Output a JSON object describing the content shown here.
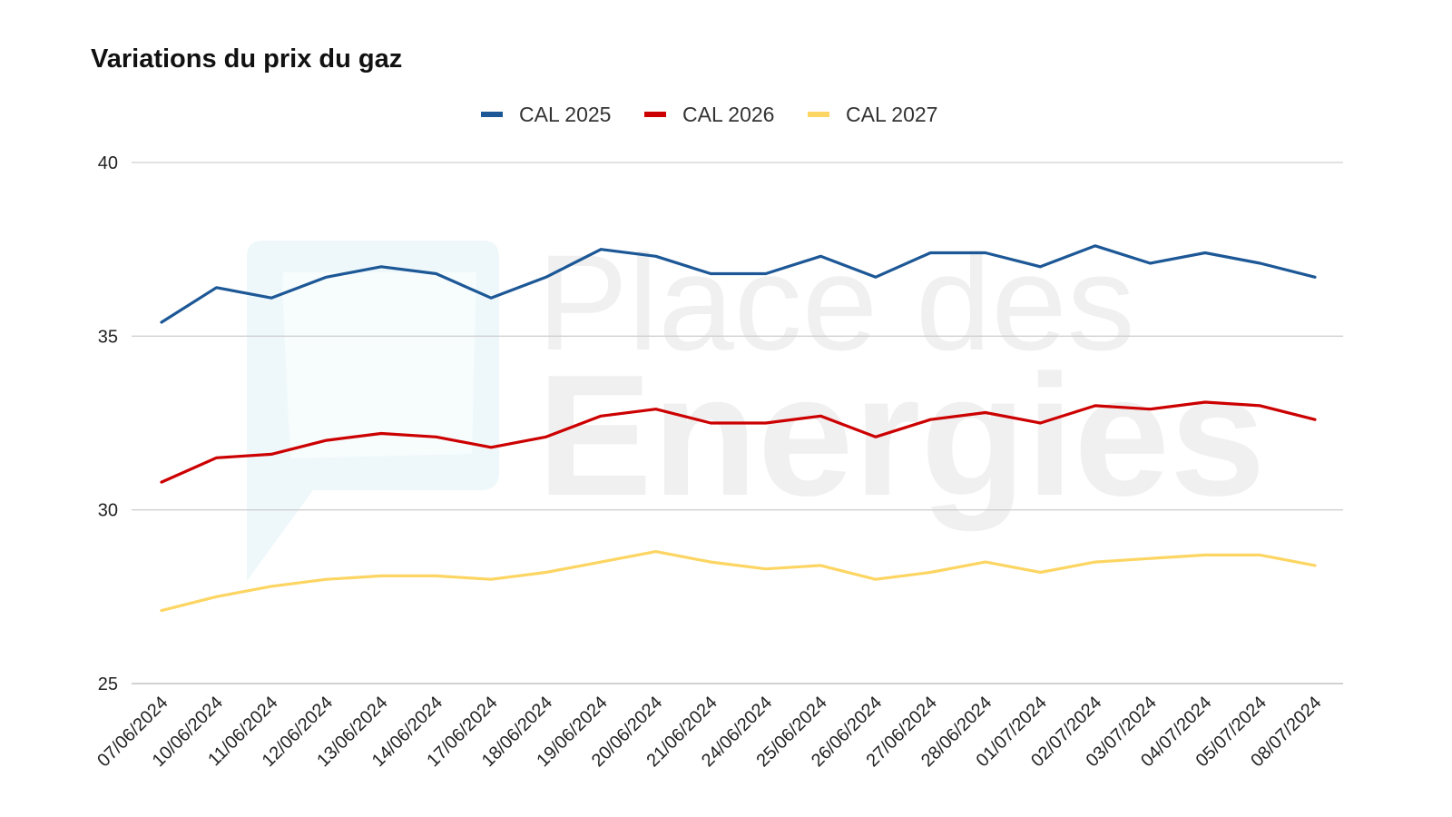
{
  "watermark": {
    "line1": "Place des",
    "line2": "Energies"
  },
  "chart_data": {
    "type": "line",
    "title": "Variations du prix du gaz",
    "xlabel": "",
    "ylabel": "",
    "ylim": [
      25,
      40
    ],
    "yticks": [
      25,
      30,
      35,
      40
    ],
    "grid": true,
    "legend_position": "top-center",
    "categories": [
      "07/06/2024",
      "10/06/2024",
      "11/06/2024",
      "12/06/2024",
      "13/06/2024",
      "14/06/2024",
      "17/06/2024",
      "18/06/2024",
      "19/06/2024",
      "20/06/2024",
      "21/06/2024",
      "24/06/2024",
      "25/06/2024",
      "26/06/2024",
      "27/06/2024",
      "28/06/2024",
      "01/07/2024",
      "02/07/2024",
      "03/07/2024",
      "04/07/2024",
      "05/07/2024",
      "08/07/2024"
    ],
    "series": [
      {
        "name": "CAL 2025",
        "color": "#1c5796",
        "values": [
          35.4,
          36.4,
          36.1,
          36.7,
          37.0,
          36.8,
          36.1,
          36.7,
          37.5,
          37.3,
          36.8,
          36.8,
          37.3,
          36.7,
          37.4,
          37.4,
          37.0,
          37.6,
          37.1,
          37.4,
          37.1,
          36.7
        ]
      },
      {
        "name": "CAL 2026",
        "color": "#cc0000",
        "values": [
          30.8,
          31.5,
          31.6,
          32.0,
          32.2,
          32.1,
          31.8,
          32.1,
          32.7,
          32.9,
          32.5,
          32.5,
          32.7,
          32.1,
          32.6,
          32.8,
          32.5,
          33.0,
          32.9,
          33.1,
          33.0,
          32.6
        ]
      },
      {
        "name": "CAL 2027",
        "color": "#fcd562",
        "values": [
          27.1,
          27.5,
          27.8,
          28.0,
          28.1,
          28.1,
          28.0,
          28.2,
          28.5,
          28.8,
          28.5,
          28.3,
          28.4,
          28.0,
          28.2,
          28.5,
          28.2,
          28.5,
          28.6,
          28.7,
          28.7,
          28.4
        ]
      }
    ]
  }
}
